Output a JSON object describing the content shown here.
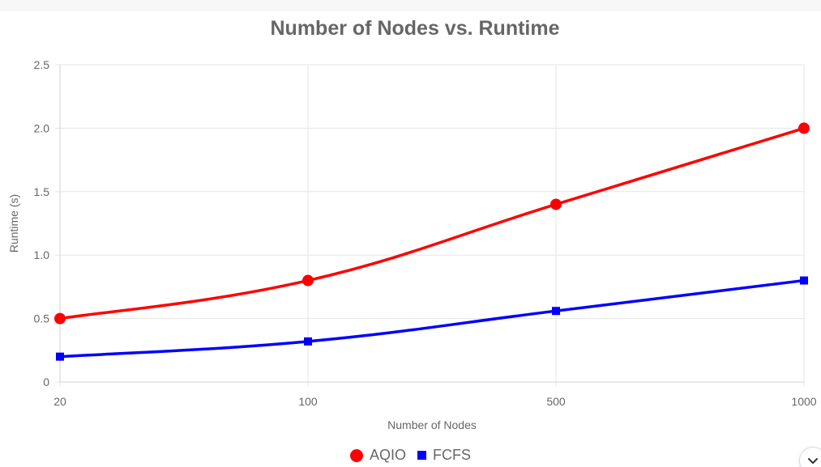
{
  "colors": {
    "aqio": "#ff0000",
    "fcfs": "#0000ff",
    "grid": "#e5e5e5",
    "text": "#666666"
  },
  "chart_data": {
    "type": "line",
    "title": "Number of Nodes vs. Runtime",
    "xlabel": "Number of Nodes",
    "ylabel": "Runtime (s)",
    "categories": [
      "20",
      "100",
      "500",
      "1000"
    ],
    "y_ticks": [
      "0",
      "0.5",
      "1.0",
      "1.5",
      "2.0",
      "2.5"
    ],
    "ylim": [
      0,
      2.5
    ],
    "grid": true,
    "legend_position": "bottom",
    "series": [
      {
        "name": "AQIO",
        "values": [
          0.5,
          0.8,
          1.4,
          2.0
        ],
        "marker": "circle",
        "color": "#ff0000"
      },
      {
        "name": "FCFS",
        "values": [
          0.2,
          0.32,
          0.56,
          0.8
        ],
        "marker": "square",
        "color": "#0000ff"
      }
    ]
  },
  "legend": {
    "items": [
      {
        "label": "AQIO"
      },
      {
        "label": "FCFS"
      }
    ]
  },
  "icons": {
    "scroll": "chevron-down-icon"
  }
}
